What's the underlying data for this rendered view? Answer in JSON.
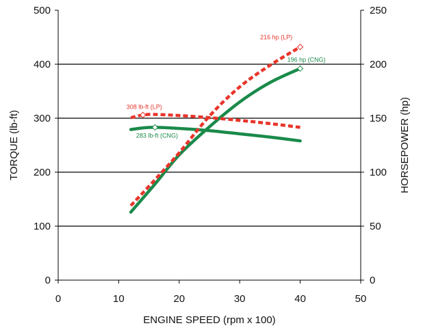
{
  "chart_data": {
    "type": "line",
    "xlabel": "ENGINE SPEED (rpm x 100)",
    "ylabel_left": "TORQUE (lb-ft)",
    "ylabel_right": "HORSEPOWER (hp)",
    "xlim": [
      0,
      50
    ],
    "ylim_left": [
      0,
      500
    ],
    "ylim_right": [
      0,
      250
    ],
    "x_ticks": [
      "0",
      "10",
      "20",
      "30",
      "40",
      "50"
    ],
    "y_ticks_left": [
      "0",
      "100",
      "200",
      "300",
      "400",
      "500"
    ],
    "y_ticks_right": [
      "0",
      "50",
      "100",
      "150",
      "200",
      "250"
    ],
    "grid": "horizontal",
    "colors": {
      "lp": "#e8352b",
      "cng": "#1a8a4a"
    },
    "series": [
      {
        "key": "torque_lp",
        "axis": "left",
        "style": "dashed",
        "color_key": "lp",
        "x": [
          12,
          14,
          16,
          20,
          25,
          30,
          35,
          40
        ],
        "y": [
          301,
          306,
          307,
          305,
          301,
          296,
          290,
          283
        ]
      },
      {
        "key": "torque_cng",
        "axis": "left",
        "style": "solid",
        "color_key": "cng",
        "x": [
          12,
          14,
          16,
          20,
          25,
          30,
          35,
          40
        ],
        "y": [
          279,
          282,
          283,
          281,
          277,
          271,
          265,
          258
        ]
      },
      {
        "key": "hp_lp",
        "axis": "right",
        "style": "dashed",
        "color_key": "lp",
        "x": [
          12,
          16,
          20,
          25,
          30,
          35,
          40
        ],
        "y": [
          69,
          93,
          118,
          152,
          179,
          199,
          216
        ]
      },
      {
        "key": "hp_cng",
        "axis": "right",
        "style": "solid",
        "color_key": "cng",
        "x": [
          12,
          16,
          20,
          25,
          30,
          35,
          40
        ],
        "y": [
          63,
          89,
          116,
          142,
          165,
          183,
          196
        ]
      }
    ],
    "markers": [
      {
        "series": "torque_lp",
        "x": 14,
        "y": 306
      },
      {
        "series": "torque_cng",
        "x": 16,
        "y": 283
      },
      {
        "series": "hp_lp",
        "x": 40,
        "y": 216
      },
      {
        "series": "hp_cng",
        "x": 40,
        "y": 196
      }
    ],
    "annotations": [
      {
        "text": "216 hp (LP)",
        "color_key": "lp",
        "anchor": "hp_lp",
        "placement": "above-left"
      },
      {
        "text": "196 hp (CNG)",
        "color_key": "cng",
        "anchor": "hp_cng",
        "placement": "above"
      },
      {
        "text": "308 lb-ft (LP)",
        "color_key": "lp",
        "anchor": "torque_lp",
        "placement": "above"
      },
      {
        "text": "283 lb-ft (CNG)",
        "color_key": "cng",
        "anchor": "torque_cng",
        "placement": "below"
      }
    ]
  }
}
